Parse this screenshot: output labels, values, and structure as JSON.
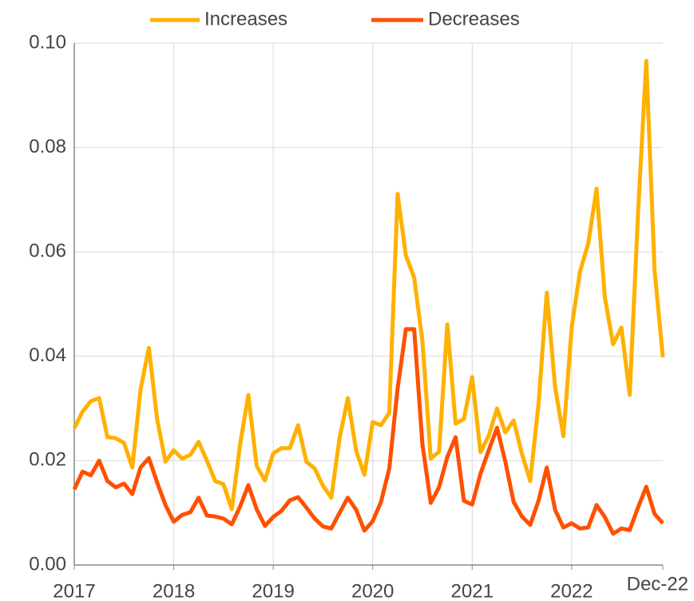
{
  "chart_data": {
    "type": "line",
    "categories": [
      "2017",
      null,
      null,
      null,
      null,
      null,
      null,
      null,
      null,
      null,
      null,
      null,
      "2018",
      null,
      null,
      null,
      null,
      null,
      null,
      null,
      null,
      null,
      null,
      null,
      "2019",
      null,
      null,
      null,
      null,
      null,
      null,
      null,
      null,
      null,
      null,
      null,
      "2020",
      null,
      null,
      null,
      null,
      null,
      null,
      null,
      null,
      null,
      null,
      null,
      "2021",
      null,
      null,
      null,
      null,
      null,
      null,
      null,
      null,
      null,
      null,
      null,
      "2022",
      null,
      null,
      null,
      null,
      null,
      null,
      null,
      null,
      null,
      null,
      "Dec-22"
    ],
    "series": [
      {
        "name": "Increases",
        "color": "#ffb000",
        "values": [
          0.0262,
          0.0294,
          0.0314,
          0.032,
          0.0245,
          0.0243,
          0.0234,
          0.0187,
          0.0337,
          0.0416,
          0.0279,
          0.0198,
          0.022,
          0.0204,
          0.0211,
          0.0236,
          0.02,
          0.0161,
          0.0155,
          0.0107,
          0.0231,
          0.0326,
          0.019,
          0.0162,
          0.0214,
          0.0224,
          0.0224,
          0.0268,
          0.0198,
          0.0185,
          0.0152,
          0.0129,
          0.0243,
          0.032,
          0.0219,
          0.0173,
          0.0274,
          0.0268,
          0.0292,
          0.0711,
          0.0593,
          0.0551,
          0.0429,
          0.0204,
          0.0217,
          0.0461,
          0.0271,
          0.028,
          0.036,
          0.0216,
          0.0248,
          0.03,
          0.0254,
          0.0277,
          0.0213,
          0.0161,
          0.0309,
          0.0522,
          0.0341,
          0.0247,
          0.0455,
          0.0562,
          0.0616,
          0.0721,
          0.0513,
          0.0423,
          0.0455,
          0.0326,
          0.0672,
          0.0966,
          0.0565,
          0.0398
        ]
      },
      {
        "name": "Decreases",
        "color": "#ff5000",
        "values": [
          0.0145,
          0.0179,
          0.0172,
          0.02,
          0.0161,
          0.0149,
          0.0156,
          0.0136,
          0.0187,
          0.0205,
          0.0158,
          0.0115,
          0.0083,
          0.0096,
          0.0101,
          0.0129,
          0.0095,
          0.0093,
          0.0089,
          0.0078,
          0.0112,
          0.0153,
          0.0107,
          0.0075,
          0.0092,
          0.0104,
          0.0124,
          0.013,
          0.011,
          0.0089,
          0.0074,
          0.007,
          0.01,
          0.0129,
          0.0106,
          0.0066,
          0.0084,
          0.0121,
          0.0185,
          0.0338,
          0.0452,
          0.0452,
          0.0231,
          0.0119,
          0.0149,
          0.0207,
          0.0245,
          0.0123,
          0.0116,
          0.0175,
          0.022,
          0.0263,
          0.0198,
          0.0121,
          0.0093,
          0.0077,
          0.0123,
          0.0187,
          0.0106,
          0.0072,
          0.008,
          0.007,
          0.0072,
          0.0115,
          0.0092,
          0.006,
          0.007,
          0.0067,
          0.011,
          0.015,
          0.0098,
          0.008
        ]
      }
    ],
    "ylim": [
      0,
      0.1
    ],
    "yticks": [
      {
        "value": 0,
        "label": "0.00"
      },
      {
        "value": 0.02,
        "label": "0.02"
      },
      {
        "value": 0.04,
        "label": "0.04"
      },
      {
        "value": 0.06,
        "label": "0.06"
      },
      {
        "value": 0.08,
        "label": "0.08"
      },
      {
        "value": 0.1,
        "label": "0.10"
      }
    ],
    "grid": true,
    "legend": "top"
  }
}
